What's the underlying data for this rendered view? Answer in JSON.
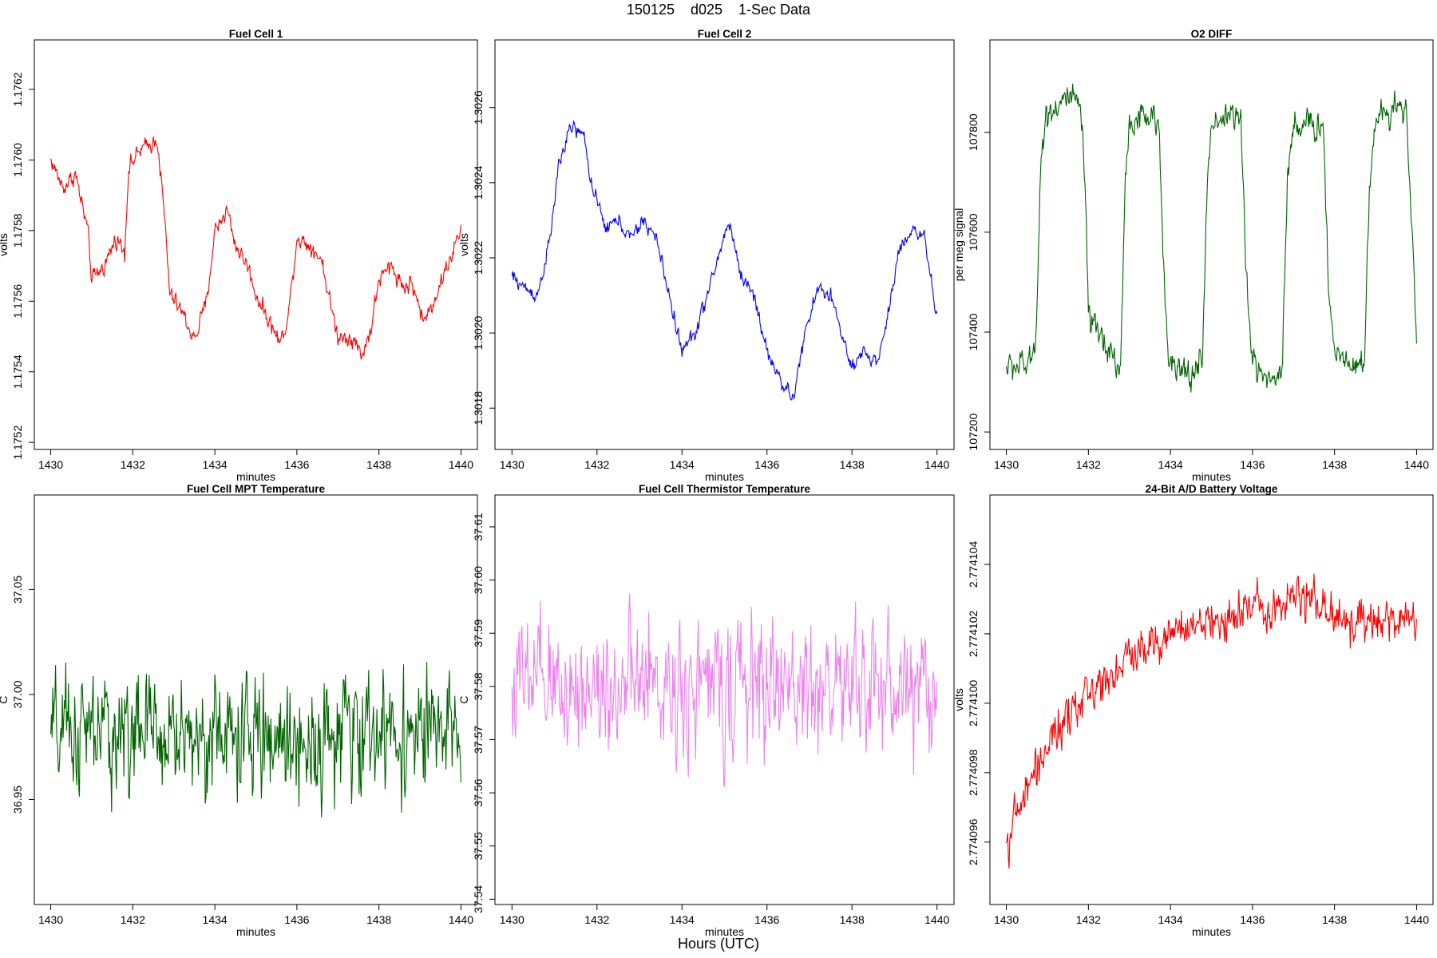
{
  "page": {
    "title": "150125    d025    1-Sec Data",
    "xlabel": "Hours (UTC)"
  },
  "chart_data": [
    {
      "type": "line",
      "title": "Fuel Cell 1",
      "xlabel": "minutes",
      "ylabel": "volts",
      "color": "#ff0000",
      "xlim": [
        1429.6,
        1440.4
      ],
      "ylim": [
        1.17518,
        1.17634
      ],
      "xticks": [
        1430,
        1432,
        1434,
        1436,
        1438,
        1440
      ],
      "yticks": [
        1.1752,
        1.1754,
        1.1756,
        1.1758,
        1.176,
        1.1762
      ],
      "ytick_labels": [
        "1.1752",
        "1.1754",
        "1.1756",
        "1.1758",
        "1.1760",
        "1.1762"
      ],
      "series": [
        {
          "values": [
            [
              1430.0,
              1.176
            ],
            [
              1430.3,
              1.17592
            ],
            [
              1430.6,
              1.17596
            ],
            [
              1430.9,
              1.1758
            ],
            [
              1431.0,
              1.17566
            ],
            [
              1431.3,
              1.1757
            ],
            [
              1431.6,
              1.17578
            ],
            [
              1431.8,
              1.17574
            ],
            [
              1431.9,
              1.17598
            ],
            [
              1432.2,
              1.17603
            ],
            [
              1432.4,
              1.17604
            ],
            [
              1432.6,
              1.17606
            ],
            [
              1432.8,
              1.1758
            ],
            [
              1432.9,
              1.17562
            ],
            [
              1433.2,
              1.17557
            ],
            [
              1433.5,
              1.17549
            ],
            [
              1433.8,
              1.1756
            ],
            [
              1434.0,
              1.1758
            ],
            [
              1434.3,
              1.17586
            ],
            [
              1434.5,
              1.17576
            ],
            [
              1434.8,
              1.1757
            ],
            [
              1435.0,
              1.17562
            ],
            [
              1435.3,
              1.17555
            ],
            [
              1435.6,
              1.17548
            ],
            [
              1435.8,
              1.17557
            ],
            [
              1436.0,
              1.17578
            ],
            [
              1436.3,
              1.17576
            ],
            [
              1436.6,
              1.17572
            ],
            [
              1436.8,
              1.1756
            ],
            [
              1437.0,
              1.1755
            ],
            [
              1437.3,
              1.1755
            ],
            [
              1437.6,
              1.17545
            ],
            [
              1437.8,
              1.17552
            ],
            [
              1438.0,
              1.17566
            ],
            [
              1438.3,
              1.1757
            ],
            [
              1438.6,
              1.17564
            ],
            [
              1438.8,
              1.17565
            ],
            [
              1439.1,
              1.17554
            ],
            [
              1439.4,
              1.17562
            ],
            [
              1439.6,
              1.17568
            ],
            [
              1440.0,
              1.1758
            ]
          ]
        }
      ],
      "noise": 1.8e-05
    },
    {
      "type": "line",
      "title": "Fuel Cell 2",
      "xlabel": "minutes",
      "ylabel": "volts",
      "color": "#0000ff",
      "xlim": [
        1429.6,
        1440.4
      ],
      "ylim": [
        1.30169,
        1.30278
      ],
      "xticks": [
        1430,
        1432,
        1434,
        1436,
        1438,
        1440
      ],
      "yticks": [
        1.3018,
        1.302,
        1.3022,
        1.3024,
        1.3026
      ],
      "ytick_labels": [
        "1.3018",
        "1.3020",
        "1.3022",
        "1.3024",
        "1.3026"
      ],
      "series": [
        {
          "values": [
            [
              1430.0,
              1.30215
            ],
            [
              1430.3,
              1.30212
            ],
            [
              1430.6,
              1.3021
            ],
            [
              1430.9,
              1.30225
            ],
            [
              1431.1,
              1.30245
            ],
            [
              1431.4,
              1.30255
            ],
            [
              1431.7,
              1.30252
            ],
            [
              1431.9,
              1.30238
            ],
            [
              1432.2,
              1.30228
            ],
            [
              1432.5,
              1.3023
            ],
            [
              1432.8,
              1.30225
            ],
            [
              1433.1,
              1.3023
            ],
            [
              1433.4,
              1.30225
            ],
            [
              1433.7,
              1.3021
            ],
            [
              1434.0,
              1.30195
            ],
            [
              1434.3,
              1.302
            ],
            [
              1434.6,
              1.3021
            ],
            [
              1434.9,
              1.30222
            ],
            [
              1435.1,
              1.3023
            ],
            [
              1435.4,
              1.30215
            ],
            [
              1435.7,
              1.3021
            ],
            [
              1436.0,
              1.30195
            ],
            [
              1436.3,
              1.30188
            ],
            [
              1436.6,
              1.30182
            ],
            [
              1436.9,
              1.302
            ],
            [
              1437.2,
              1.30212
            ],
            [
              1437.5,
              1.3021
            ],
            [
              1437.8,
              1.30198
            ],
            [
              1438.0,
              1.3019
            ],
            [
              1438.3,
              1.30195
            ],
            [
              1438.6,
              1.30192
            ],
            [
              1438.9,
              1.30208
            ],
            [
              1439.1,
              1.30222
            ],
            [
              1439.4,
              1.30228
            ],
            [
              1439.7,
              1.30225
            ],
            [
              1440.0,
              1.30204
            ]
          ]
        }
      ],
      "noise": 1.5e-05
    },
    {
      "type": "line",
      "title": "O2 DIFF",
      "xlabel": "minutes",
      "ylabel": "per meg signal",
      "color": "#006400",
      "xlim": [
        1429.6,
        1440.4
      ],
      "ylim": [
        107165,
        107985
      ],
      "xticks": [
        1430,
        1432,
        1434,
        1436,
        1438,
        1440
      ],
      "yticks": [
        107200,
        107400,
        107600,
        107800
      ],
      "ytick_labels": [
        "107200",
        "107400",
        "107600",
        "107800"
      ],
      "series": [
        {
          "values": [
            [
              1430.0,
              107330
            ],
            [
              1430.6,
              107335
            ],
            [
              1430.72,
              107400
            ],
            [
              1430.85,
              107760
            ],
            [
              1431.0,
              107840
            ],
            [
              1431.5,
              107870
            ],
            [
              1431.8,
              107850
            ],
            [
              1431.92,
              107700
            ],
            [
              1432.0,
              107420
            ],
            [
              1432.5,
              107370
            ],
            [
              1432.78,
              107320
            ],
            [
              1432.9,
              107700
            ],
            [
              1433.0,
              107820
            ],
            [
              1433.5,
              107830
            ],
            [
              1433.72,
              107810
            ],
            [
              1433.85,
              107500
            ],
            [
              1434.0,
              107330
            ],
            [
              1434.5,
              107310
            ],
            [
              1434.78,
              107350
            ],
            [
              1434.9,
              107700
            ],
            [
              1435.0,
              107820
            ],
            [
              1435.5,
              107840
            ],
            [
              1435.72,
              107820
            ],
            [
              1435.85,
              107500
            ],
            [
              1436.0,
              107340
            ],
            [
              1436.5,
              107300
            ],
            [
              1436.72,
              107330
            ],
            [
              1436.85,
              107700
            ],
            [
              1437.0,
              107820
            ],
            [
              1437.5,
              107810
            ],
            [
              1437.72,
              107820
            ],
            [
              1437.85,
              107500
            ],
            [
              1438.0,
              107360
            ],
            [
              1438.5,
              107340
            ],
            [
              1438.72,
              107330
            ],
            [
              1438.85,
              107700
            ],
            [
              1439.0,
              107820
            ],
            [
              1439.5,
              107860
            ],
            [
              1439.75,
              107840
            ],
            [
              1439.9,
              107600
            ],
            [
              1440.0,
              107360
            ]
          ]
        }
      ],
      "noise": 22
    },
    {
      "type": "line",
      "title": "Fuel Cell MPT Temperature",
      "xlabel": "minutes",
      "ylabel": "C",
      "color": "#006400",
      "xlim": [
        1429.6,
        1440.4
      ],
      "ylim": [
        36.9,
        37.095
      ],
      "xticks": [
        1430,
        1432,
        1434,
        1436,
        1438,
        1440
      ],
      "yticks": [
        36.95,
        37.0,
        37.05
      ],
      "ytick_labels": [
        "36.95",
        "37.00",
        "37.05"
      ],
      "series": [
        {
          "values": [
            [
              1430.0,
              36.98
            ],
            [
              1432.0,
              36.982
            ],
            [
              1434.0,
              36.98
            ],
            [
              1436.0,
              36.978
            ],
            [
              1438.0,
              36.982
            ],
            [
              1440.0,
              36.98
            ]
          ]
        }
      ],
      "noise": 0.02
    },
    {
      "type": "line",
      "title": "Fuel Cell Thermistor Temperature",
      "xlabel": "minutes",
      "ylabel": "C",
      "color": "#ee82ee",
      "xlim": [
        1429.6,
        1440.4
      ],
      "ylim": [
        37.539,
        37.616
      ],
      "xticks": [
        1430,
        1432,
        1434,
        1436,
        1438,
        1440
      ],
      "yticks": [
        37.54,
        37.55,
        37.56,
        37.57,
        37.58,
        37.59,
        37.6,
        37.61
      ],
      "ytick_labels": [
        "37.54",
        "37.55",
        "37.56",
        "37.57",
        "37.58",
        "37.59",
        "37.60",
        "37.61"
      ],
      "series": [
        {
          "values": [
            [
              1430.0,
              37.58
            ],
            [
              1432.0,
              37.58
            ],
            [
              1434.0,
              37.58
            ],
            [
              1436.0,
              37.58
            ],
            [
              1438.0,
              37.58
            ],
            [
              1440.0,
              37.58
            ]
          ]
        }
      ],
      "noise": 0.009
    },
    {
      "type": "line",
      "title": "24-Bit A/D Battery Voltage",
      "xlabel": "minutes",
      "ylabel": "volts",
      "color": "#ff0000",
      "xlim": [
        1429.6,
        1440.4
      ],
      "ylim": [
        2.7740942,
        2.774106
      ],
      "xticks": [
        1430,
        1432,
        1434,
        1436,
        1438,
        1440
      ],
      "yticks": [
        2.774096,
        2.774098,
        2.7741,
        2.774102,
        2.774104
      ],
      "ytick_labels": [
        "2.774096",
        "2.774098",
        "2.774100",
        "2.774102",
        "2.774104"
      ],
      "series": [
        {
          "values": [
            [
              1430.0,
              2.774096
            ],
            [
              1430.5,
              2.7740975
            ],
            [
              1431.0,
              2.7740988
            ],
            [
              1431.5,
              2.7740995
            ],
            [
              1432.0,
              2.7741003
            ],
            [
              1432.5,
              2.7741008
            ],
            [
              1433.0,
              2.7741013
            ],
            [
              1433.5,
              2.7741018
            ],
            [
              1434.0,
              2.774102
            ],
            [
              1435.0,
              2.7741023
            ],
            [
              1436.0,
              2.7741028
            ],
            [
              1437.0,
              2.774103
            ],
            [
              1437.5,
              2.7741031
            ],
            [
              1438.0,
              2.7741025
            ],
            [
              1439.0,
              2.7741022
            ],
            [
              1440.0,
              2.7741025
            ]
          ]
        }
      ],
      "noise": 4.5e-07
    }
  ]
}
